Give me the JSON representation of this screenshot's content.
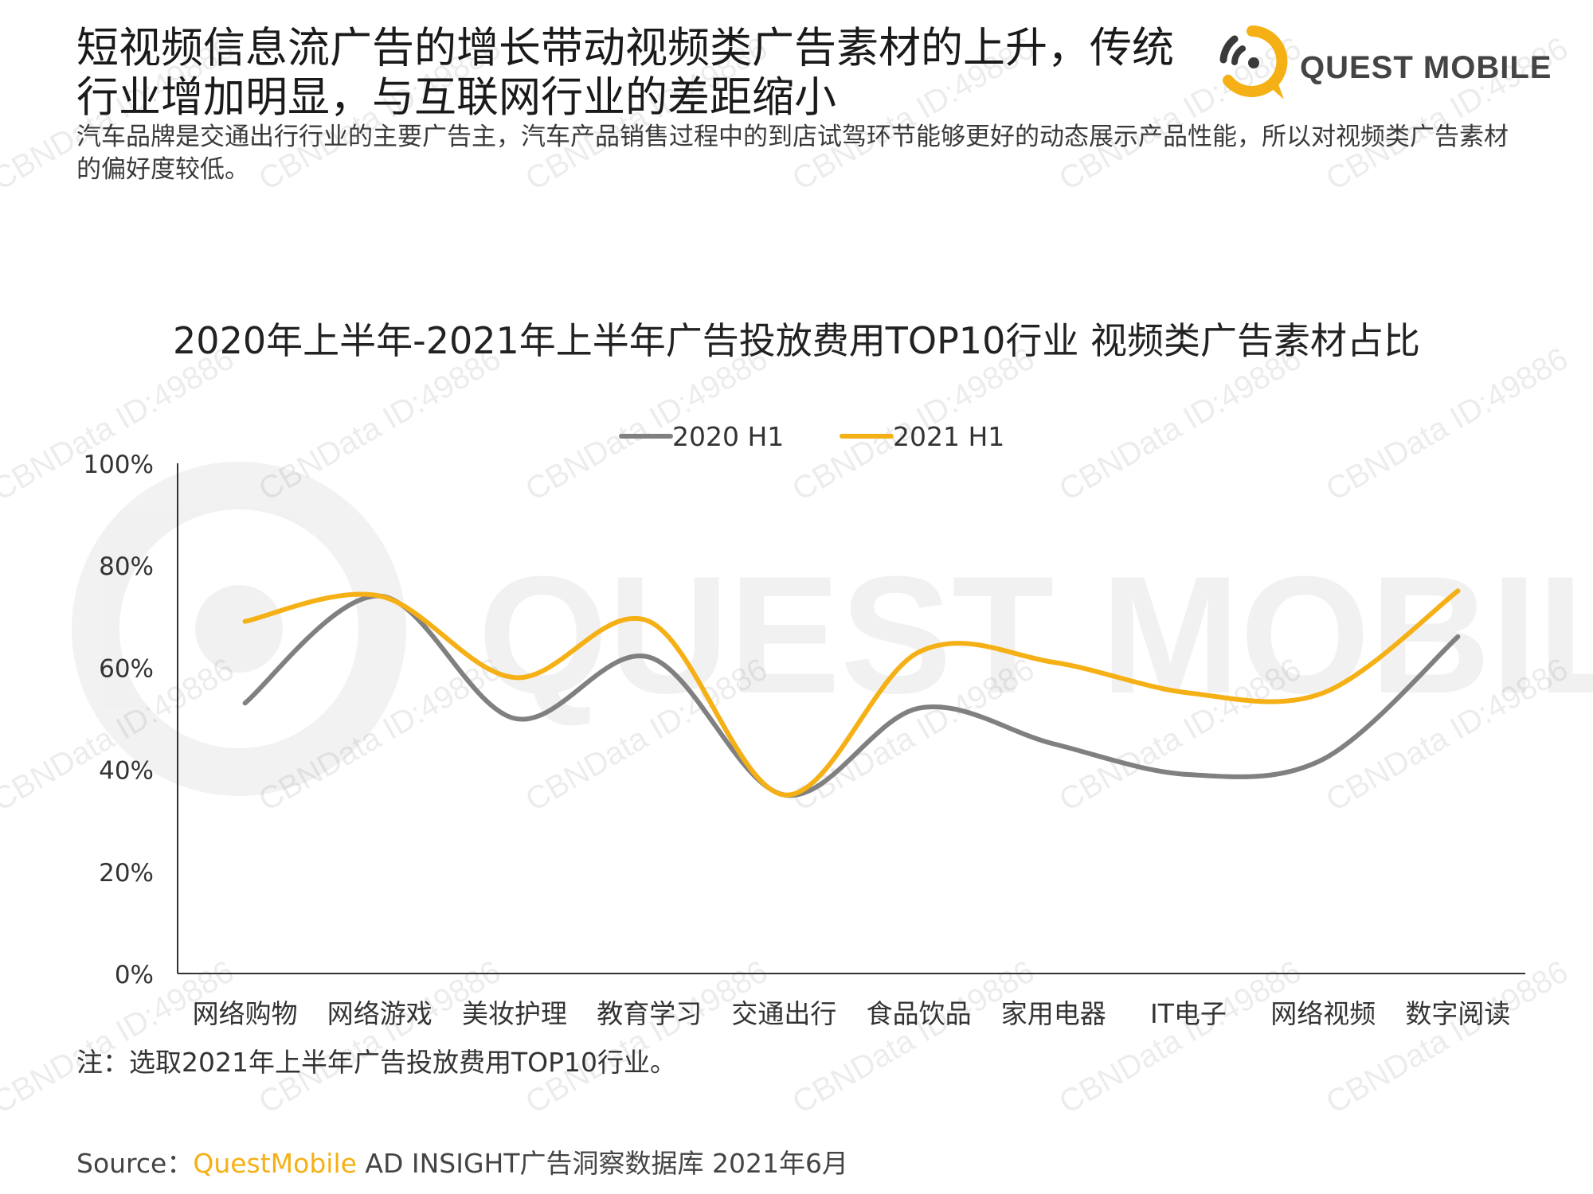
{
  "headline": "短视频信息流广告的增长带动视频类广告素材的上升，传统行业增加明显，与互联网行业的差距缩小",
  "subhead": "汽车品牌是交通出行行业的主要广告主，汽车产品销售过程中的到店试驾环节能够更好的动态展示产品性能，所以对视频类广告素材的偏好度较低。",
  "brand": {
    "name": "QUEST MOBILE",
    "accent": "#f5b015",
    "icon": "quest-mobile-logo-icon"
  },
  "watermark": {
    "text": "CBNData ID:49886",
    "brand_text": "QUEST MOBILE"
  },
  "chart_data": {
    "type": "line",
    "title": "2020年上半年-2021年上半年广告投放费用TOP10行业 视频类广告素材占比",
    "categories": [
      "网络购物",
      "网络游戏",
      "美妆护理",
      "教育学习",
      "交通出行",
      "食品饮品",
      "家用电器",
      "IT电子",
      "网络视频",
      "数字阅读"
    ],
    "series": [
      {
        "name": "2020 H1",
        "color": "#808080",
        "values": [
          53,
          74,
          50,
          62,
          35,
          52,
          45,
          39,
          42,
          66
        ]
      },
      {
        "name": "2021 H1",
        "color": "#f5b015",
        "values": [
          69,
          74,
          58,
          69,
          35,
          63,
          61,
          55,
          55,
          75
        ]
      }
    ],
    "ylim": [
      0,
      100
    ],
    "yticks": [
      "0%",
      "20%",
      "40%",
      "60%",
      "80%",
      "100%"
    ],
    "ytick_values": [
      0,
      20,
      40,
      60,
      80,
      100
    ],
    "legend_position": "top-center",
    "grid": false,
    "smooth": true
  },
  "note": "注：选取2021年上半年广告投放费用TOP10行业。",
  "source": {
    "label": "Source：",
    "brand": "QuestMobile",
    "rest": " AD INSIGHT广告洞察数据库 2021年6月"
  }
}
